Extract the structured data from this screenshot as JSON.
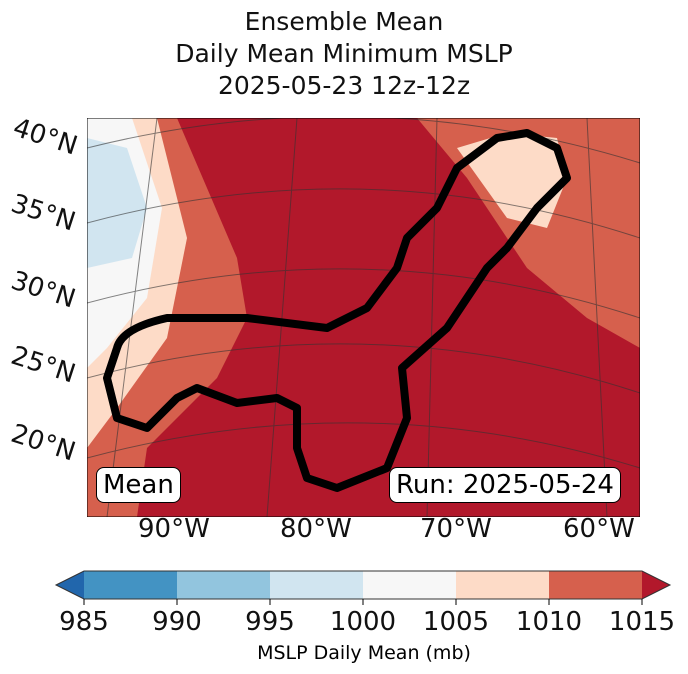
{
  "title": {
    "line1": "Ensemble Mean",
    "line2": "Daily Mean Minimum MSLP",
    "line3": "2025-05-23 12z-12z"
  },
  "map": {
    "lat_labels": [
      "40°N",
      "35°N",
      "30°N",
      "25°N",
      "20°N"
    ],
    "lon_labels": [
      "90°W",
      "80°W",
      "70°W",
      "60°W"
    ],
    "mean_label": "Mean",
    "run_label": "Run: 2025-05-24"
  },
  "colorbar": {
    "label": "MSLP Daily Mean (mb)",
    "ticks": [
      "985",
      "990",
      "995",
      "1000",
      "1005",
      "1010",
      "1015"
    ],
    "colors": [
      "#4393c3",
      "#92c5de",
      "#d1e5f0",
      "#f7f7f7",
      "#fddbc7",
      "#d6604d"
    ],
    "under_color": "#2166ac",
    "over_color": "#b2182b"
  }
}
